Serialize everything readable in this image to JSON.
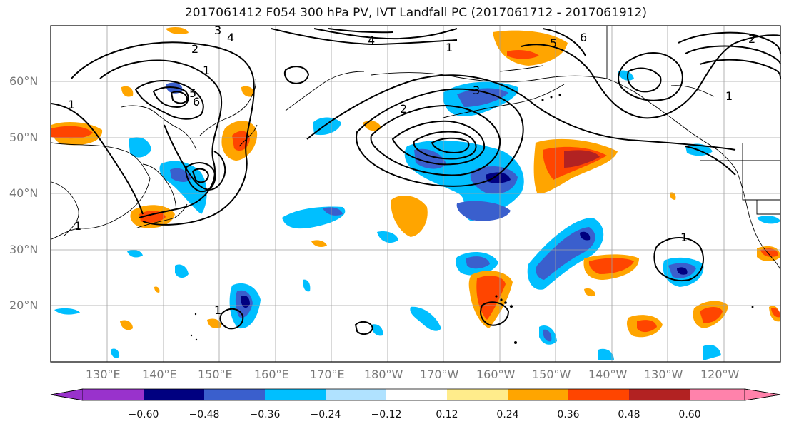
{
  "title": "2017061412 F054 300 hPa PV, IVT Landfall PC (2017061712 - 2017061912)",
  "lat_labels": [
    "60°N",
    "50°N",
    "40°N",
    "30°N",
    "20°N"
  ],
  "lon_labels": [
    "130°E",
    "140°E",
    "150°E",
    "160°E",
    "170°E",
    "180°W",
    "170°W",
    "160°W",
    "150°W",
    "140°W",
    "130°W",
    "120°W"
  ],
  "colorbar": {
    "ticks": [
      "−0.60",
      "−0.48",
      "−0.36",
      "−0.24",
      "−0.12",
      "0.12",
      "0.24",
      "0.36",
      "0.48",
      "0.60"
    ],
    "colors": [
      "#9932cc",
      "#000080",
      "#3a5fcd",
      "#00bfff",
      "#b0e2ff",
      "#ffffff",
      "#ffec8b",
      "#ffa500",
      "#ff4500",
      "#b22222",
      "#ff82ab"
    ]
  },
  "contour_labels": [
    "1",
    "2",
    "3",
    "4",
    "5",
    "6",
    "1",
    "2",
    "3",
    "4",
    "1",
    "5",
    "6",
    "1",
    "2",
    "1",
    "1",
    "1"
  ],
  "colors": {
    "pos_strong": "#b22222",
    "pos": "#ff4500",
    "pos_mid": "#ffa500",
    "pos_weak": "#ffec8b",
    "neg_weak": "#b0e2ff",
    "neg": "#00bfff",
    "neg_mid": "#3a5fcd",
    "neg_strong": "#000080"
  }
}
